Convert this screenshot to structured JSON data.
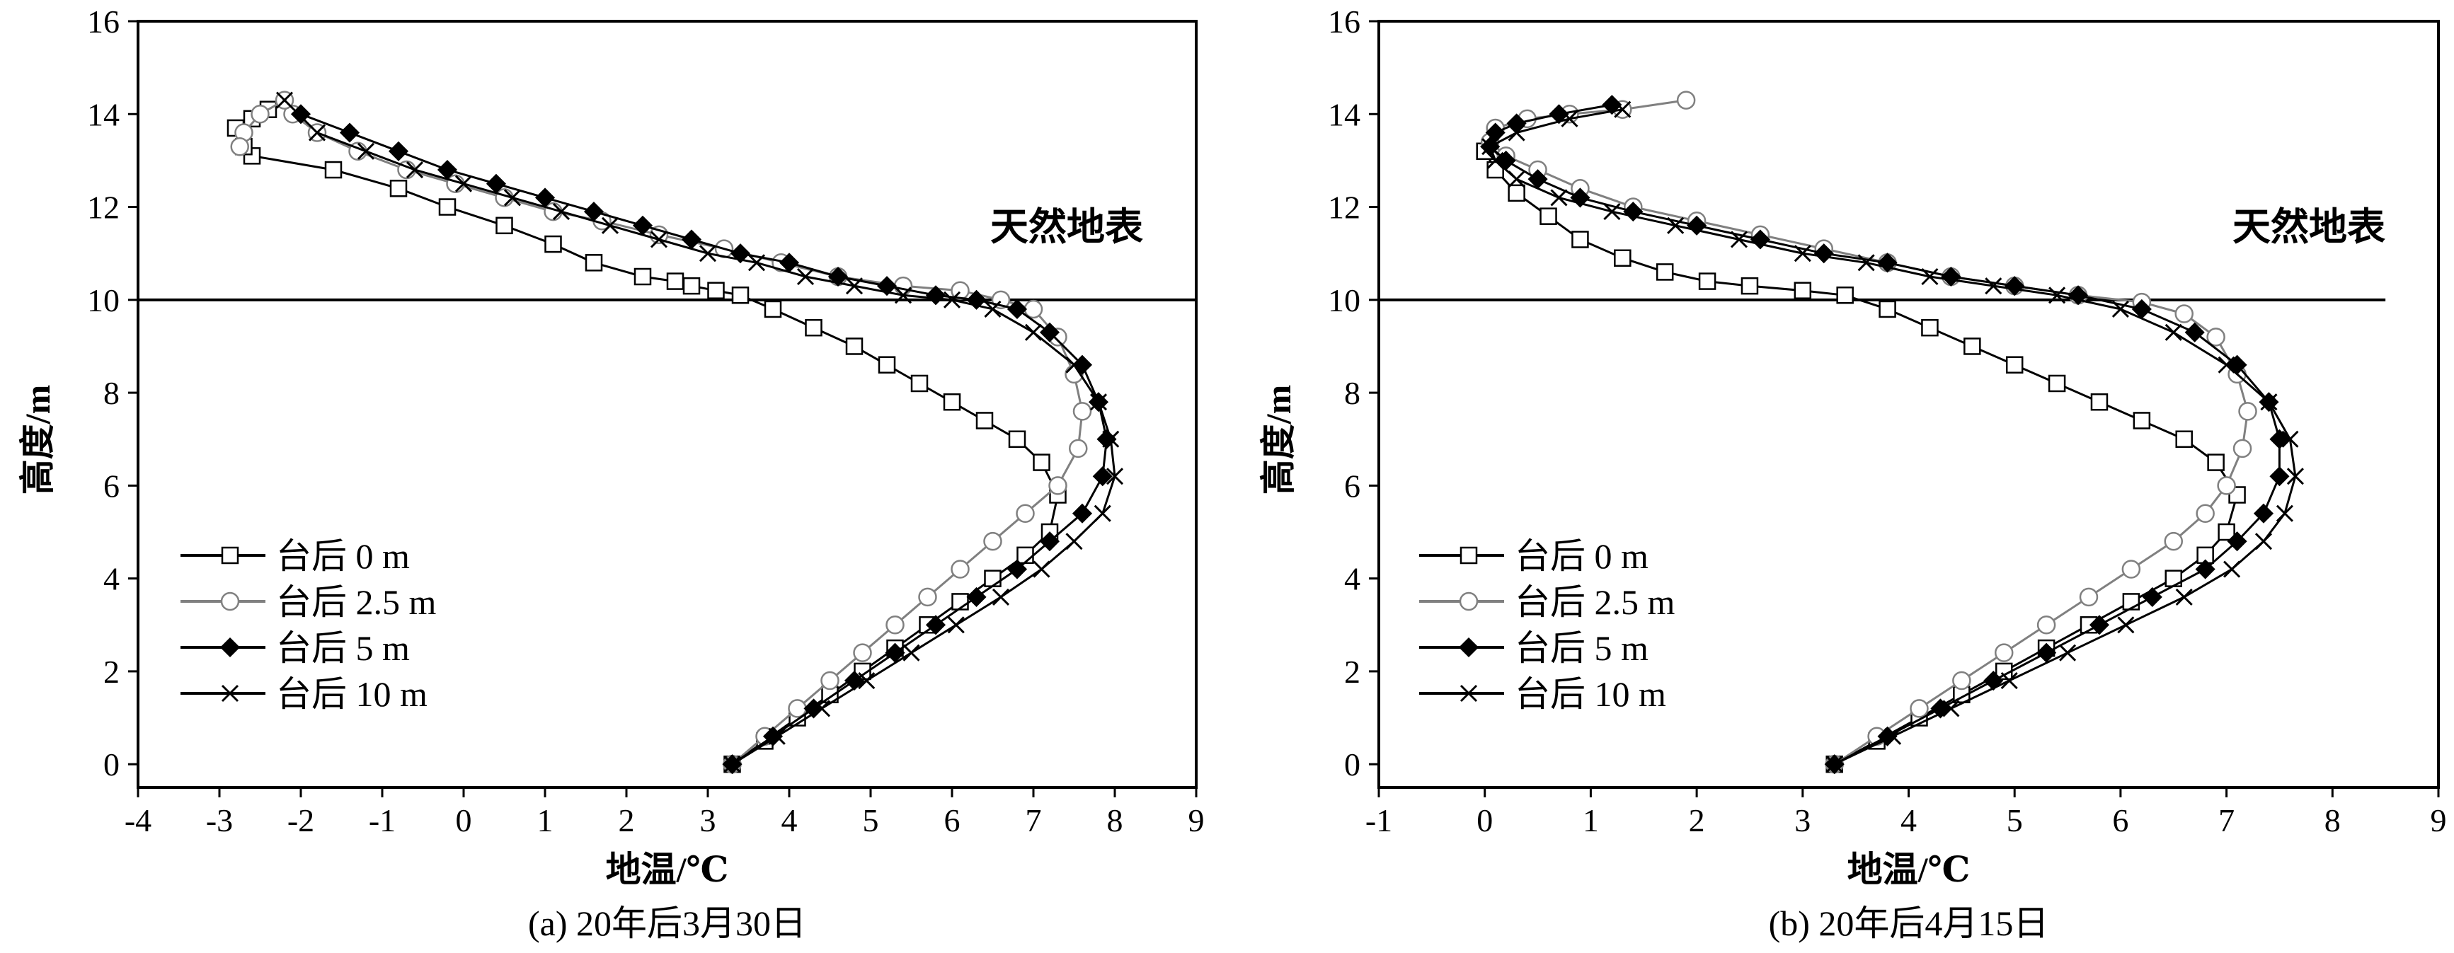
{
  "figure": {
    "panels": [
      {
        "caption": "(a) 20年后3月30日",
        "surface_label": "天然地表"
      },
      {
        "caption": "(b) 20年后4月15日",
        "surface_label": "天然地表"
      }
    ]
  },
  "chart_data": [
    {
      "type": "line",
      "xlabel": "地温/℃",
      "ylabel": "高度/m",
      "xlim": [
        -4,
        9
      ],
      "ylim": [
        -0.5,
        16
      ],
      "xticks": [
        -4,
        -3,
        -2,
        -1,
        0,
        1,
        2,
        3,
        4,
        5,
        6,
        7,
        8,
        9
      ],
      "yticks": [
        0,
        2,
        4,
        6,
        8,
        10,
        12,
        14,
        16
      ],
      "surface_line_y": 10,
      "legend_position": "lower-left",
      "series": [
        {
          "name": "台后 0 m",
          "marker": "square",
          "color": "#000000",
          "x": [
            3.3,
            3.7,
            4.1,
            4.5,
            4.9,
            5.3,
            5.7,
            6.1,
            6.5,
            6.9,
            7.2,
            7.3,
            7.1,
            6.8,
            6.4,
            6.0,
            5.6,
            5.2,
            4.8,
            4.3,
            3.8,
            3.4,
            3.1,
            2.8,
            2.6,
            2.2,
            1.6,
            1.1,
            0.5,
            -0.2,
            -0.8,
            -1.6,
            -2.6,
            -2.7,
            -2.8,
            -2.6,
            -2.4
          ],
          "y": [
            0.0,
            0.5,
            1.0,
            1.5,
            2.0,
            2.5,
            3.0,
            3.5,
            4.0,
            4.5,
            5.0,
            5.8,
            6.5,
            7.0,
            7.4,
            7.8,
            8.2,
            8.6,
            9.0,
            9.4,
            9.8,
            10.1,
            10.2,
            10.3,
            10.4,
            10.5,
            10.8,
            11.2,
            11.6,
            12.0,
            12.4,
            12.8,
            13.1,
            13.3,
            13.7,
            13.9,
            14.1
          ]
        },
        {
          "name": "台后 2.5 m",
          "marker": "circle",
          "color": "#808080",
          "x": [
            3.3,
            3.7,
            4.1,
            4.5,
            4.9,
            5.3,
            5.7,
            6.1,
            6.5,
            6.9,
            7.3,
            7.55,
            7.6,
            7.5,
            7.3,
            7.0,
            6.6,
            6.1,
            5.4,
            4.6,
            3.9,
            3.2,
            2.4,
            1.7,
            1.1,
            0.5,
            -0.1,
            -0.7,
            -1.3,
            -1.8,
            -2.1,
            -2.2,
            -2.5,
            -2.7,
            -2.75
          ],
          "y": [
            0.0,
            0.6,
            1.2,
            1.8,
            2.4,
            3.0,
            3.6,
            4.2,
            4.8,
            5.4,
            6.0,
            6.8,
            7.6,
            8.4,
            9.2,
            9.8,
            10.0,
            10.2,
            10.3,
            10.5,
            10.8,
            11.1,
            11.4,
            11.7,
            11.9,
            12.2,
            12.5,
            12.8,
            13.2,
            13.6,
            14.0,
            14.3,
            14.0,
            13.6,
            13.3
          ]
        },
        {
          "name": "台后 5 m",
          "marker": "diamond",
          "color": "#000000",
          "x": [
            3.3,
            3.8,
            4.3,
            4.8,
            5.3,
            5.8,
            6.3,
            6.8,
            7.2,
            7.6,
            7.85,
            7.9,
            7.8,
            7.6,
            7.2,
            6.8,
            6.3,
            5.8,
            5.2,
            4.6,
            4.0,
            3.4,
            2.8,
            2.2,
            1.6,
            1.0,
            0.4,
            -0.2,
            -0.8,
            -1.4,
            -2.0
          ],
          "y": [
            0.0,
            0.6,
            1.2,
            1.8,
            2.4,
            3.0,
            3.6,
            4.2,
            4.8,
            5.4,
            6.2,
            7.0,
            7.8,
            8.6,
            9.3,
            9.8,
            10.0,
            10.1,
            10.3,
            10.5,
            10.8,
            11.0,
            11.3,
            11.6,
            11.9,
            12.2,
            12.5,
            12.8,
            13.2,
            13.6,
            14.0
          ]
        },
        {
          "name": "台后 10 m",
          "marker": "cross",
          "color": "#000000",
          "x": [
            3.3,
            3.85,
            4.4,
            4.95,
            5.5,
            6.05,
            6.6,
            7.1,
            7.5,
            7.85,
            8.0,
            7.95,
            7.8,
            7.5,
            7.0,
            6.5,
            6.0,
            5.4,
            4.8,
            4.2,
            3.6,
            3.0,
            2.4,
            1.8,
            1.2,
            0.6,
            0.0,
            -0.6,
            -1.2,
            -1.8,
            -2.2
          ],
          "y": [
            0.0,
            0.6,
            1.2,
            1.8,
            2.4,
            3.0,
            3.6,
            4.2,
            4.8,
            5.4,
            6.2,
            7.0,
            7.8,
            8.6,
            9.3,
            9.8,
            10.0,
            10.1,
            10.3,
            10.5,
            10.8,
            11.0,
            11.3,
            11.6,
            11.9,
            12.2,
            12.5,
            12.8,
            13.2,
            13.6,
            14.3
          ]
        }
      ]
    },
    {
      "type": "line",
      "xlabel": "地温/℃",
      "ylabel": "高度/m",
      "xlim": [
        -1,
        9
      ],
      "ylim": [
        -0.5,
        16
      ],
      "xticks": [
        -1,
        0,
        1,
        2,
        3,
        4,
        5,
        6,
        7,
        8,
        9
      ],
      "yticks": [
        0,
        2,
        4,
        6,
        8,
        10,
        12,
        14,
        16
      ],
      "surface_line_y": 10,
      "legend_position": "lower-left",
      "series": [
        {
          "name": "台后 0 m",
          "marker": "square",
          "color": "#000000",
          "x": [
            3.3,
            3.7,
            4.1,
            4.5,
            4.9,
            5.3,
            5.7,
            6.1,
            6.5,
            6.8,
            7.0,
            7.1,
            6.9,
            6.6,
            6.2,
            5.8,
            5.4,
            5.0,
            4.6,
            4.2,
            3.8,
            3.4,
            3.0,
            2.5,
            2.1,
            1.7,
            1.3,
            0.9,
            0.6,
            0.3,
            0.1,
            0.0
          ],
          "y": [
            0.0,
            0.5,
            1.0,
            1.5,
            2.0,
            2.5,
            3.0,
            3.5,
            4.0,
            4.5,
            5.0,
            5.8,
            6.5,
            7.0,
            7.4,
            7.8,
            8.2,
            8.6,
            9.0,
            9.4,
            9.8,
            10.1,
            10.2,
            10.3,
            10.4,
            10.6,
            10.9,
            11.3,
            11.8,
            12.3,
            12.8,
            13.2
          ]
        },
        {
          "name": "台后 2.5 m",
          "marker": "circle",
          "color": "#808080",
          "x": [
            3.3,
            3.7,
            4.1,
            4.5,
            4.9,
            5.3,
            5.7,
            6.1,
            6.5,
            6.8,
            7.0,
            7.15,
            7.2,
            7.1,
            6.9,
            6.6,
            6.2,
            5.6,
            5.0,
            4.4,
            3.8,
            3.2,
            2.6,
            2.0,
            1.4,
            0.9,
            0.5,
            0.2,
            0.05,
            0.1,
            0.4,
            0.8,
            1.3,
            1.9
          ],
          "y": [
            0.0,
            0.6,
            1.2,
            1.8,
            2.4,
            3.0,
            3.6,
            4.2,
            4.8,
            5.4,
            6.0,
            6.8,
            7.6,
            8.4,
            9.2,
            9.7,
            9.95,
            10.1,
            10.3,
            10.5,
            10.8,
            11.1,
            11.4,
            11.7,
            12.0,
            12.4,
            12.8,
            13.1,
            13.4,
            13.7,
            13.9,
            14.0,
            14.1,
            14.3
          ]
        },
        {
          "name": "台后 5 m",
          "marker": "diamond",
          "color": "#000000",
          "x": [
            3.3,
            3.8,
            4.3,
            4.8,
            5.3,
            5.8,
            6.3,
            6.8,
            7.1,
            7.35,
            7.5,
            7.5,
            7.4,
            7.1,
            6.7,
            6.2,
            5.6,
            5.0,
            4.4,
            3.8,
            3.2,
            2.6,
            2.0,
            1.4,
            0.9,
            0.5,
            0.2,
            0.05,
            0.1,
            0.3,
            0.7,
            1.2
          ],
          "y": [
            0.0,
            0.6,
            1.2,
            1.8,
            2.4,
            3.0,
            3.6,
            4.2,
            4.8,
            5.4,
            6.2,
            7.0,
            7.8,
            8.6,
            9.3,
            9.8,
            10.1,
            10.3,
            10.5,
            10.8,
            11.0,
            11.3,
            11.6,
            11.9,
            12.2,
            12.6,
            13.0,
            13.3,
            13.6,
            13.8,
            14.0,
            14.2
          ]
        },
        {
          "name": "台后 10 m",
          "marker": "cross",
          "color": "#000000",
          "x": [
            3.3,
            3.85,
            4.4,
            4.95,
            5.5,
            6.05,
            6.6,
            7.05,
            7.35,
            7.55,
            7.65,
            7.6,
            7.4,
            7.0,
            6.5,
            6.0,
            5.4,
            4.8,
            4.2,
            3.6,
            3.0,
            2.4,
            1.8,
            1.2,
            0.7,
            0.3,
            0.1,
            0.05,
            0.3,
            0.8,
            1.3
          ],
          "y": [
            0.0,
            0.6,
            1.2,
            1.8,
            2.4,
            3.0,
            3.6,
            4.2,
            4.8,
            5.4,
            6.2,
            7.0,
            7.8,
            8.6,
            9.3,
            9.8,
            10.1,
            10.3,
            10.5,
            10.8,
            11.0,
            11.3,
            11.6,
            11.9,
            12.2,
            12.6,
            13.0,
            13.3,
            13.6,
            13.9,
            14.1
          ]
        }
      ]
    }
  ]
}
